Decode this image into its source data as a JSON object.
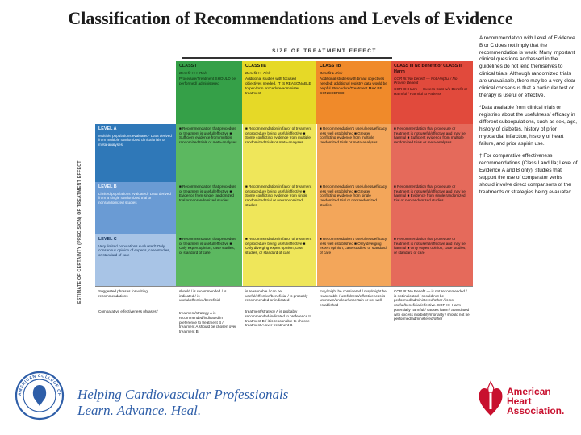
{
  "title": "Classification of Recommendations and Levels of Evidence",
  "table": {
    "size_header": "SIZE OF TREATMENT EFFECT",
    "vertical_label": "ESTIMATE OF CERTAINTY (PRECISION) OF TREATMENT EFFECT",
    "classes": [
      {
        "title": "CLASS I",
        "sub": "Benefit >>> Risk",
        "body": "Procedure/Treatment SHOULD be performed/ administered"
      },
      {
        "title": "CLASS IIa",
        "sub": "Benefit >> Risk",
        "body": "Additional studies with focused objectives needed. IT IS REASONABLE to per-form procedure/administer treatment"
      },
      {
        "title": "CLASS IIb",
        "sub": "Benefit ≥ Risk",
        "body": "Additional studies with broad objectives needed; additional registry data would be helpful. Procedure/Treatment MAY BE CONSIDERED"
      },
      {
        "title": "CLASS III No Benefit or CLASS III Harm",
        "sub": "COR III: No benefit — Not Helpful / No Proven Benefit",
        "body": "COR III: Harm — Excess Cost w/o Benefit or Harmful / Harmful to Patients"
      }
    ],
    "levels": [
      {
        "title": "LEVEL A",
        "body": "Multiple populations evaluated* Data derived from multiple randomized clinical trials or meta-analyses"
      },
      {
        "title": "LEVEL B",
        "body": "Limited populations evaluated* Data derived from a single randomized trial or nonrandomized studies"
      },
      {
        "title": "LEVEL C",
        "body": "Very limited populations evaluated* Only consensus opinion of experts, case studies, or standard of care"
      }
    ],
    "cells": {
      "a1": "■ Recommendation that procedure or treatment is useful/effective ■ Sufficient evidence from multiple randomized trials or meta-analyses",
      "a2": "■ Recommendation in favor of treatment or procedure being useful/effective ■ Some conflicting evidence from multiple randomized trials or meta-analyses",
      "a3": "■ Recommendation's usefulness/efficacy less well established ■ Greater conflicting evidence from multiple randomized trials or meta-analyses",
      "a4": "■ Recommendation that procedure or treatment is not useful/effective and may be harmful ■ Sufficient evidence from multiple randomized trials or meta-analyses",
      "b1": "■ Recommendation that procedure or treatment is useful/effective ■ Evidence from single randomized trial or nonrandomized studies",
      "b2": "■ Recommendation in favor of treatment or procedure being useful/effective ■ Some conflicting evidence from single randomized trial or nonrandomized studies",
      "b3": "■ Recommendation's usefulness/efficacy less well established ■ Greater conflicting evidence from single randomized trial or nonrandomized studies",
      "b4": "■ Recommendation that procedure or treatment is not useful/effective and may be harmful ■ Evidence from single randomized trial or nonrandomized studies",
      "c1": "■ Recommendation that procedure or treatment is useful/effective ■ Only expert opinion, case studies, or standard of care",
      "c2": "■ Recommendation in favor of treatment or procedure being useful/effective ■ Only diverging expert opinion, case studies, or standard of care",
      "c3": "■ Recommendation's usefulness/efficacy less well established ■ Only diverging expert opinion, case studies, or standard of care",
      "c4": "■ Recommendation that procedure or treatment is not useful/effective and may be harmful ■ Only expert opinion, case studies, or standard of care"
    },
    "bottom": {
      "label1": "Suggested phrases for writing recommendations",
      "label2": "Comparative effectiveness phrases†",
      "p1": "should / is recommended / is indicated / is useful/effective/beneficial",
      "p2": "is reasonable / can be useful/effective/beneficial / is probably recommended or indicated",
      "p3": "may/might be considered / may/might be reasonable / usefulness/effectiveness is unknown/unclear/uncertain or not well established",
      "p4": "COR III: No Benefit — is not recommended / is not indicated / should not be performed/administered/other / is not useful/beneficial/effective. COR III: Harm — potentially harmful / causes harm / associated with excess morbidity/mortality / should not be performed/administered/other",
      "q1": "treatment/strategy A is recommended/indicated in preference to treatment B / treatment A should be chosen over treatment B",
      "q2": "treatment/strategy A is probably recommended/indicated in preference to treatment B / it is reasonable to choose treatment A over treatment B"
    }
  },
  "notes": {
    "n1": "A recommendation with Level of Evidence B or C does not imply that the recommendation is weak. Many important clinical questions addressed in the guidelines do not lend themselves to clinical trials. Although randomized trials are unavailable, there may be a very clear clinical consensus that a particular test or therapy is useful or effective.",
    "n2": "*Data available from clinical trials or registries about the usefulness/ efficacy in different subpopulations, such as sex, age, history of diabetes, history of prior myocardial infarction, history of heart failure, and prior aspirin use.",
    "n3": "† For comparative effectiveness recommendations (Class I and IIa; Level of Evidence A and B only), studies that support the use of comparator verbs should involve direct comparisons of the treatments or strategies being evaluated."
  },
  "footer": {
    "seal_text": "AMERICAN COLLEGE OF CARDIOLOGY",
    "tagline_line1": "Helping Cardiovascular Professionals",
    "tagline_line2": "Learn. Advance. Heal.",
    "aha_line1": "American",
    "aha_line2": "Heart",
    "aha_line3": "Association."
  },
  "colors": {
    "class_I": "#35a048",
    "class_IIa": "#e6d927",
    "class_IIb": "#f08a2a",
    "class_III": "#e14a3c",
    "level_A": "#2f78b8",
    "level_B": "#6a9bd4",
    "level_C": "#a8c4e6",
    "tagline": "#2e5ea8",
    "aha_red": "#c8102e"
  }
}
